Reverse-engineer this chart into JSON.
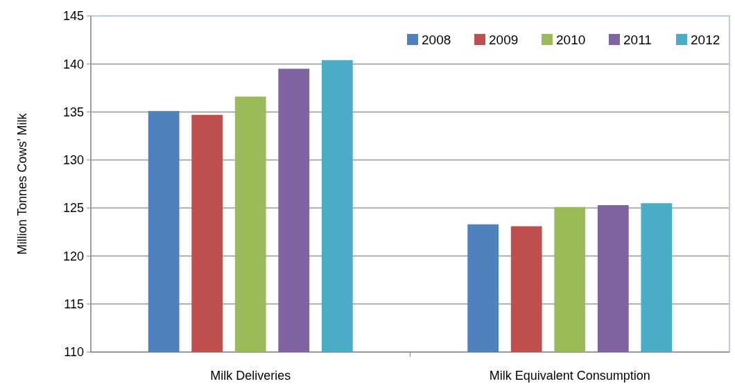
{
  "chart_data": {
    "type": "bar",
    "ylabel": "Million Tonnes Cows’ Milk",
    "categories": [
      "Milk Deliveries",
      "Milk Equivalent Consumption"
    ],
    "series": [
      {
        "name": "2008",
        "color": "#4f81bd",
        "values": [
          135.1,
          123.3
        ]
      },
      {
        "name": "2009",
        "color": "#c0504d",
        "values": [
          134.7,
          123.1
        ]
      },
      {
        "name": "2010",
        "color": "#9bbb59",
        "values": [
          136.6,
          125.1
        ]
      },
      {
        "name": "2011",
        "color": "#8064a2",
        "values": [
          139.5,
          125.3
        ]
      },
      {
        "name": "2012",
        "color": "#4bacc6",
        "values": [
          140.4,
          125.5
        ]
      }
    ],
    "ylim": [
      110,
      145
    ],
    "yticks": [
      110,
      115,
      120,
      125,
      130,
      135,
      140,
      145
    ],
    "grid": "y",
    "legend": "top right"
  }
}
